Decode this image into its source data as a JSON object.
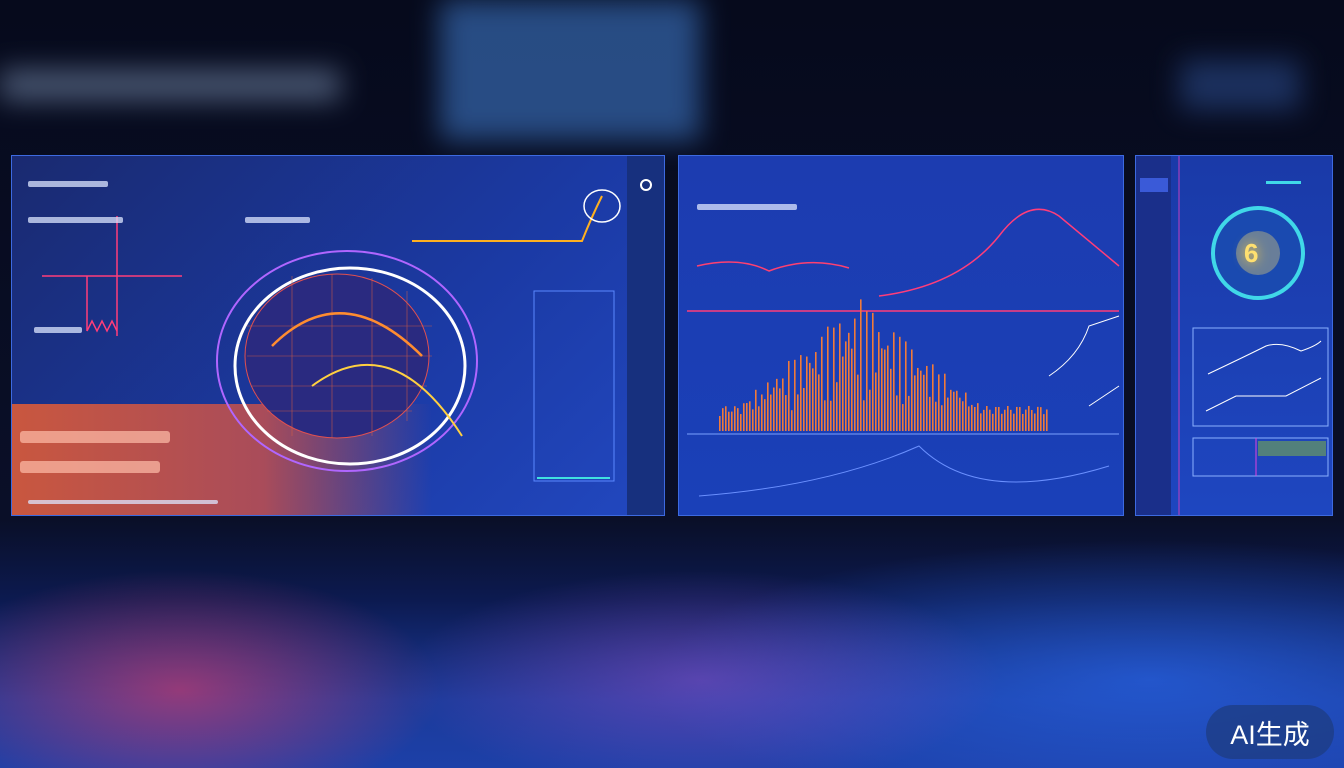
{
  "watermark": "AI生成",
  "gauge": {
    "value": "6"
  },
  "colors": {
    "accent": "#3d6ae0",
    "bars": "#f07a3a",
    "highlight": "#ff3d7a",
    "gauge_ring": "#40d8e8"
  }
}
